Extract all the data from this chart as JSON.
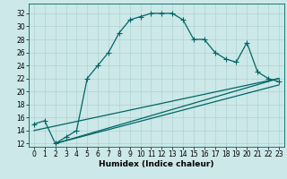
{
  "title": "",
  "xlabel": "Humidex (Indice chaleur)",
  "ylabel": "",
  "bg_color": "#cce8e8",
  "grid_color": "#aacccc",
  "line_color": "#006666",
  "xlim": [
    -0.5,
    23.5
  ],
  "ylim": [
    11.5,
    33.5
  ],
  "xticks": [
    0,
    1,
    2,
    3,
    4,
    5,
    6,
    7,
    8,
    9,
    10,
    11,
    12,
    13,
    14,
    15,
    16,
    17,
    18,
    19,
    20,
    21,
    22,
    23
  ],
  "yticks": [
    12,
    14,
    16,
    18,
    20,
    22,
    24,
    26,
    28,
    30,
    32
  ],
  "main_x": [
    0,
    1,
    2,
    3,
    4,
    5,
    6,
    7,
    8,
    9,
    10,
    11,
    12,
    13,
    14,
    15,
    16,
    17,
    18,
    19,
    20,
    21,
    22,
    23
  ],
  "main_y": [
    15,
    15.5,
    12,
    13,
    14,
    22,
    24,
    26,
    29,
    31,
    31.5,
    32,
    32,
    32,
    31,
    28,
    28,
    26,
    25,
    24.5,
    27.5,
    23,
    22,
    21.5
  ],
  "line1_x": [
    2,
    23
  ],
  "line1_y": [
    12,
    22
  ],
  "line2_x": [
    2,
    23
  ],
  "line2_y": [
    12,
    21
  ],
  "line3_x": [
    0,
    23
  ],
  "line3_y": [
    14,
    22
  ],
  "marker_style": "+",
  "marker_size": 4,
  "line_width": 0.9,
  "tick_fontsize": 5.5,
  "xlabel_fontsize": 6.5
}
